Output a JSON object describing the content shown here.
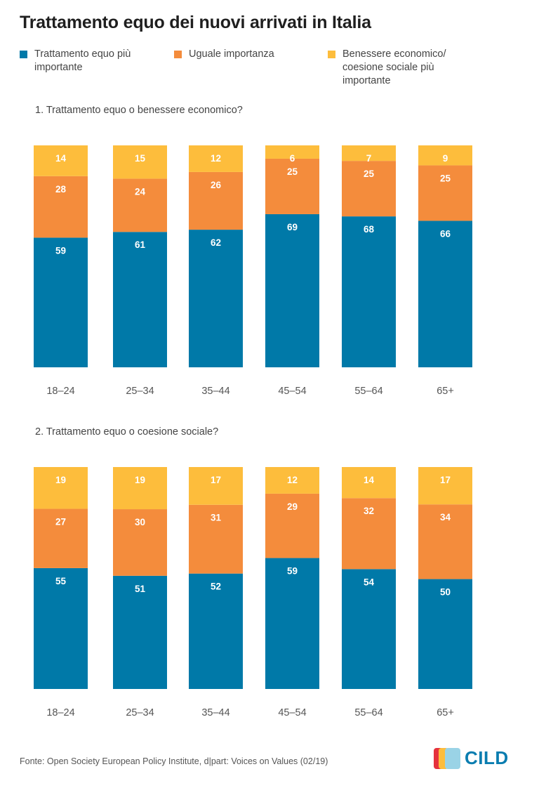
{
  "title": "Trattamento equo dei nuovi arrivati in Italia",
  "colors": {
    "equo": "#0079a8",
    "uguale": "#f48c3c",
    "benessere": "#fdbd3c",
    "tick": "#555555",
    "logo_text": "#0a7db0"
  },
  "legend": [
    {
      "label_line1": "Trattamento equo più",
      "label_line2": "importante",
      "label_line3": "",
      "color": "#0079a8"
    },
    {
      "label_line1": "Uguale importanza",
      "label_line2": "",
      "label_line3": "",
      "color": "#f48c3c"
    },
    {
      "label_line1": "Benessere economico/",
      "label_line2": "coesione sociale più",
      "label_line3": "importante",
      "color": "#fdbd3c"
    }
  ],
  "chart_data": [
    {
      "type": "bar",
      "stacked": true,
      "subtitle": "1. Trattamento equo o benessere economico?",
      "categories": [
        "18–24",
        "25–34",
        "35–44",
        "45–54",
        "55–64",
        "65+"
      ],
      "series": [
        {
          "name": "Trattamento equo più importante",
          "values": [
            59,
            61,
            62,
            69,
            68,
            66
          ]
        },
        {
          "name": "Uguale importanza",
          "values": [
            28,
            24,
            26,
            25,
            25,
            25
          ]
        },
        {
          "name": "Benessere economico/coesione sociale più importante",
          "values": [
            14,
            15,
            12,
            6,
            7,
            9
          ]
        }
      ],
      "ylim": [
        0,
        100
      ],
      "grid": false
    },
    {
      "type": "bar",
      "stacked": true,
      "subtitle": "2. Trattamento equo o coesione sociale?",
      "categories": [
        "18–24",
        "25–34",
        "35–44",
        "45–54",
        "55–64",
        "65+"
      ],
      "series": [
        {
          "name": "Trattamento equo più importante",
          "values": [
            55,
            51,
            52,
            59,
            54,
            50
          ]
        },
        {
          "name": "Uguale importanza",
          "values": [
            27,
            30,
            31,
            29,
            32,
            34
          ]
        },
        {
          "name": "Benessere economico/coesione sociale più importante",
          "values": [
            19,
            19,
            17,
            12,
            14,
            17
          ]
        }
      ],
      "ylim": [
        0,
        100
      ],
      "grid": false
    }
  ],
  "footer": {
    "source": "Fonte: Open Society European Policy Institute, d|part: Voices on Values (02/19)",
    "logo_text": "CILD",
    "logo_colors": [
      "#e5323d",
      "#fdbd3c",
      "#9ad3e6"
    ]
  }
}
